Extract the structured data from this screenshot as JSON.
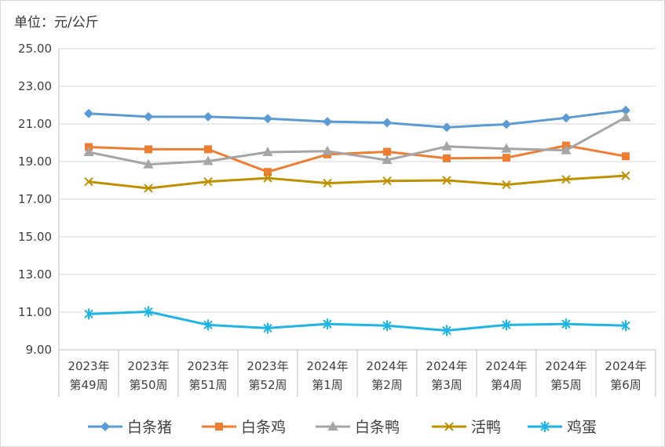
{
  "unit_label": "单位：元/公斤",
  "chart_data": {
    "type": "line",
    "categories": [
      [
        "2023年",
        "第49周"
      ],
      [
        "2023年",
        "第50周"
      ],
      [
        "2023年",
        "第51周"
      ],
      [
        "2023年",
        "第52周"
      ],
      [
        "2024年",
        "第1周"
      ],
      [
        "2024年",
        "第2周"
      ],
      [
        "2024年",
        "第3周"
      ],
      [
        "2024年",
        "第4周"
      ],
      [
        "2024年",
        "第5周"
      ],
      [
        "2024年",
        "第6周"
      ]
    ],
    "ylim": [
      9.0,
      25.0
    ],
    "yticks": [
      "9.00",
      "11.00",
      "13.00",
      "15.00",
      "17.00",
      "19.00",
      "21.00",
      "23.00",
      "25.00"
    ],
    "grid": true,
    "legend_position": "bottom",
    "series": [
      {
        "name": "白条猪",
        "color": "#5b9bd5",
        "marker": "diamond",
        "values": [
          21.55,
          21.38,
          21.38,
          21.28,
          21.12,
          21.06,
          20.82,
          20.98,
          21.32,
          21.72
        ]
      },
      {
        "name": "白条鸡",
        "color": "#ed7d31",
        "marker": "square",
        "values": [
          19.77,
          19.65,
          19.65,
          18.45,
          19.38,
          19.52,
          19.17,
          19.2,
          19.85,
          19.28
        ]
      },
      {
        "name": "白条鸭",
        "color": "#a5a5a5",
        "marker": "triangle",
        "values": [
          19.5,
          18.85,
          19.02,
          19.5,
          19.55,
          19.08,
          19.8,
          19.68,
          19.6,
          21.35
        ]
      },
      {
        "name": "活鸭",
        "color": "#bf9000",
        "marker": "x",
        "values": [
          17.93,
          17.58,
          17.93,
          18.12,
          17.85,
          17.97,
          18.0,
          17.77,
          18.05,
          18.25
        ]
      },
      {
        "name": "鸡蛋",
        "color": "#1eb4e6",
        "marker": "star",
        "values": [
          10.9,
          11.02,
          10.32,
          10.15,
          10.37,
          10.28,
          10.02,
          10.32,
          10.37,
          10.28
        ]
      }
    ]
  }
}
